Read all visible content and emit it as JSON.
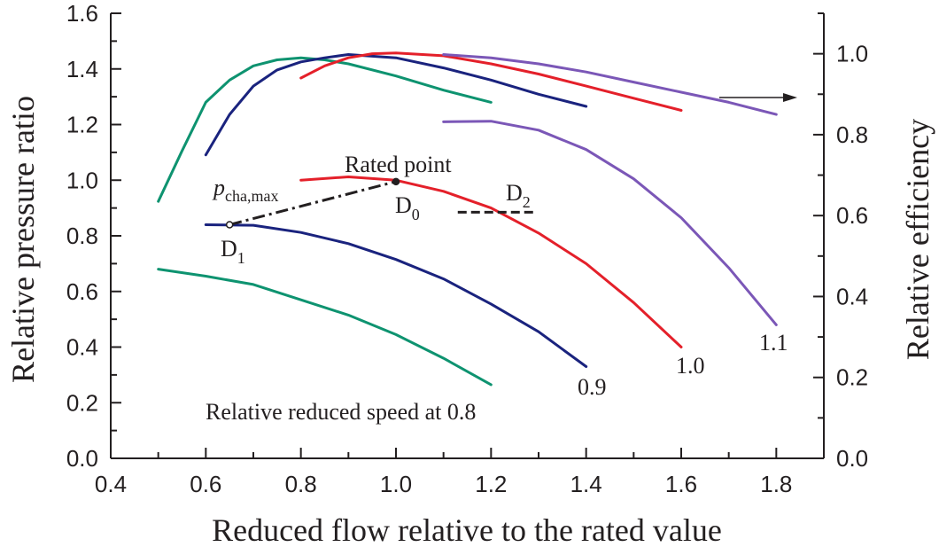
{
  "chart_data": {
    "type": "line",
    "title": "",
    "xlabel": "Reduced flow relative to the rated value",
    "ylabel": "Relative pressure ratio",
    "y2label": "Relative efficiency",
    "xlim": [
      0.4,
      1.9
    ],
    "ylim": [
      0.0,
      1.6
    ],
    "y2lim": [
      0.0,
      1.1
    ],
    "xticks": [
      "0.4",
      "0.6",
      "0.8",
      "1.0",
      "1.2",
      "1.4",
      "1.6",
      "1.8"
    ],
    "xtick_values": [
      0.4,
      0.6,
      0.8,
      1.0,
      1.2,
      1.4,
      1.6,
      1.8
    ],
    "yticks": [
      "0.0",
      "0.2",
      "0.4",
      "0.6",
      "0.8",
      "1.0",
      "1.2",
      "1.4",
      "1.6"
    ],
    "ytick_values": [
      0.0,
      0.2,
      0.4,
      0.6,
      0.8,
      1.0,
      1.2,
      1.4,
      1.6
    ],
    "y2ticks": [
      "0.0",
      "0.2",
      "0.4",
      "0.6",
      "0.8",
      "1.0"
    ],
    "y2tick_values": [
      0.0,
      0.2,
      0.4,
      0.6,
      0.8,
      1.0
    ],
    "grid": false,
    "series": [
      {
        "name": "pressure-0.8",
        "axis": "left",
        "color": "#0e9370",
        "x": [
          0.5,
          0.6,
          0.7,
          0.8,
          0.9,
          1.0,
          1.1,
          1.2
        ],
        "y": [
          0.68,
          0.655,
          0.625,
          0.57,
          0.515,
          0.445,
          0.36,
          0.265
        ]
      },
      {
        "name": "efficiency-0.8",
        "axis": "right",
        "color": "#0e9370",
        "x": [
          0.5,
          0.55,
          0.6,
          0.65,
          0.7,
          0.75,
          0.8,
          0.85,
          0.9,
          1.0,
          1.1,
          1.2
        ],
        "y": [
          0.635,
          0.76,
          0.88,
          0.935,
          0.97,
          0.985,
          0.99,
          0.985,
          0.975,
          0.945,
          0.91,
          0.88
        ]
      },
      {
        "name": "pressure-0.9",
        "axis": "left",
        "color": "#1a237e",
        "x": [
          0.6,
          0.7,
          0.8,
          0.9,
          1.0,
          1.1,
          1.2,
          1.3,
          1.4
        ],
        "y": [
          0.84,
          0.838,
          0.812,
          0.772,
          0.715,
          0.645,
          0.555,
          0.455,
          0.33
        ]
      },
      {
        "name": "efficiency-0.9",
        "axis": "right",
        "color": "#1a237e",
        "x": [
          0.6,
          0.65,
          0.7,
          0.75,
          0.8,
          0.85,
          0.9,
          1.0,
          1.1,
          1.2,
          1.3,
          1.4
        ],
        "y": [
          0.75,
          0.85,
          0.92,
          0.96,
          0.98,
          0.99,
          0.998,
          0.99,
          0.965,
          0.935,
          0.9,
          0.87
        ]
      },
      {
        "name": "pressure-1.0",
        "axis": "left",
        "color": "#e4202a",
        "x": [
          0.8,
          0.9,
          1.0,
          1.1,
          1.2,
          1.3,
          1.4,
          1.5,
          1.6
        ],
        "y": [
          1.0,
          1.012,
          1.0,
          0.96,
          0.9,
          0.81,
          0.7,
          0.56,
          0.4
        ]
      },
      {
        "name": "efficiency-1.0",
        "axis": "right",
        "color": "#e4202a",
        "x": [
          0.8,
          0.85,
          0.9,
          0.95,
          1.0,
          1.1,
          1.2,
          1.3,
          1.4,
          1.5,
          1.6
        ],
        "y": [
          0.94,
          0.97,
          0.99,
          1.0,
          1.002,
          0.995,
          0.975,
          0.95,
          0.92,
          0.89,
          0.86
        ]
      },
      {
        "name": "pressure-1.1",
        "axis": "left",
        "color": "#7b57b7",
        "x": [
          1.1,
          1.2,
          1.3,
          1.4,
          1.5,
          1.6,
          1.7,
          1.8
        ],
        "y": [
          1.21,
          1.212,
          1.18,
          1.11,
          1.005,
          0.865,
          0.685,
          0.48
        ]
      },
      {
        "name": "efficiency-1.1",
        "axis": "right",
        "color": "#7b57b7",
        "x": [
          1.1,
          1.2,
          1.3,
          1.4,
          1.5,
          1.6,
          1.7,
          1.8
        ],
        "y": [
          0.998,
          0.99,
          0.975,
          0.955,
          0.93,
          0.905,
          0.88,
          0.85
        ]
      }
    ],
    "surge_line": {
      "name": "p_cha,max",
      "x": [
        0.65,
        1.0
      ],
      "y": [
        0.84,
        0.995
      ]
    },
    "d2_marker": {
      "x": [
        1.13,
        1.29
      ],
      "y": [
        0.885,
        0.885
      ]
    },
    "points": [
      {
        "id": "D1",
        "x": 0.65,
        "y": 0.84
      },
      {
        "id": "D0",
        "x": 1.0,
        "y": 0.995
      }
    ],
    "annotations": {
      "speed_08": "Relative reduced speed at 0.8",
      "speed_09": "0.9",
      "speed_10": "1.0",
      "speed_11": "1.1",
      "rated_point": "Rated point",
      "p_main": "p",
      "p_sub": "cha,max",
      "d_letter": "D",
      "d1_sub": "1",
      "d0_sub": "0",
      "d2_sub": "2"
    }
  }
}
